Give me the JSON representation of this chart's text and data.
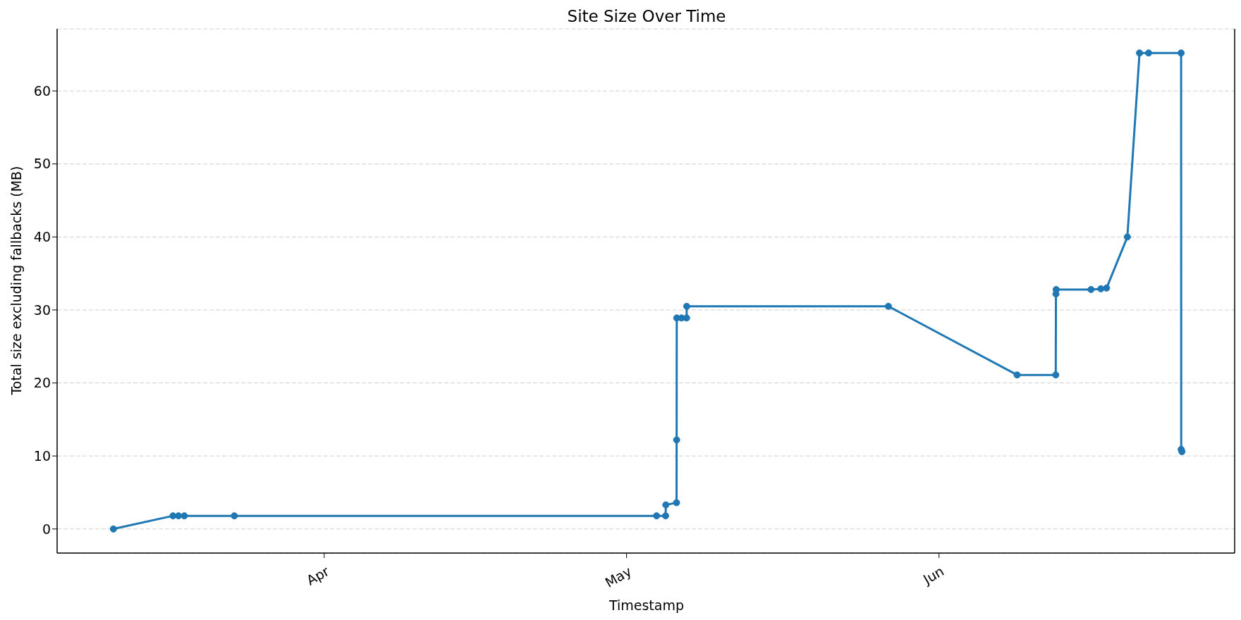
{
  "chart_data": {
    "type": "line",
    "title": "Site Size Over Time",
    "xlabel": "Timestamp",
    "ylabel": "Total size excluding fallbacks (MB)",
    "x": [
      "--03-11T02:00",
      "--03-17T00:00",
      "--03-17T13:00",
      "--03-18T03:00",
      "--03-23T02:00",
      "--05-03T23:30",
      "--05-04T21:00",
      "--05-04T21:30",
      "--05-05T23:00",
      "--05-05T23:15",
      "--05-05T23:30",
      "--05-06T11:00",
      "--05-06T23:00",
      "--05-06T23:15",
      "--05-26T23:30",
      "--06-08T18:00",
      "--06-12T14:00",
      "--06-12T14:30",
      "--06-12T15:00",
      "--06-16T02:00",
      "--06-17T01:30",
      "--06-17T15:00",
      "--06-19T16:30",
      "--06-20T21:30",
      "--06-21T19:00",
      "--06-25T00:30",
      "--06-25T00:45",
      "--06-25T02:30"
    ],
    "series": [
      {
        "color": "#1f77b4",
        "values": [
          0,
          1.8,
          1.8,
          1.8,
          1.8,
          1.8,
          1.8,
          3.3,
          3.6,
          12.2,
          28.9,
          28.9,
          28.9,
          30.5,
          30.5,
          21.1,
          21.1,
          32.2,
          32.8,
          32.8,
          32.9,
          33.0,
          40.0,
          65.2,
          65.2,
          65.2,
          10.9,
          10.6
        ]
      }
    ],
    "xlim": [
      "--03-05T12:00",
      "--06-30T08:00"
    ],
    "xticks": [
      {
        "value": "--04-01",
        "label": "Apr"
      },
      {
        "value": "--05-01",
        "label": "May"
      },
      {
        "value": "--06-01",
        "label": "Jun"
      }
    ],
    "ylim": [
      -3.3,
      68.5
    ],
    "yticks": [
      0,
      10,
      20,
      30,
      40,
      50,
      60
    ],
    "grid": "y",
    "marker": "circle",
    "line_style": "solid",
    "legend": false
  }
}
